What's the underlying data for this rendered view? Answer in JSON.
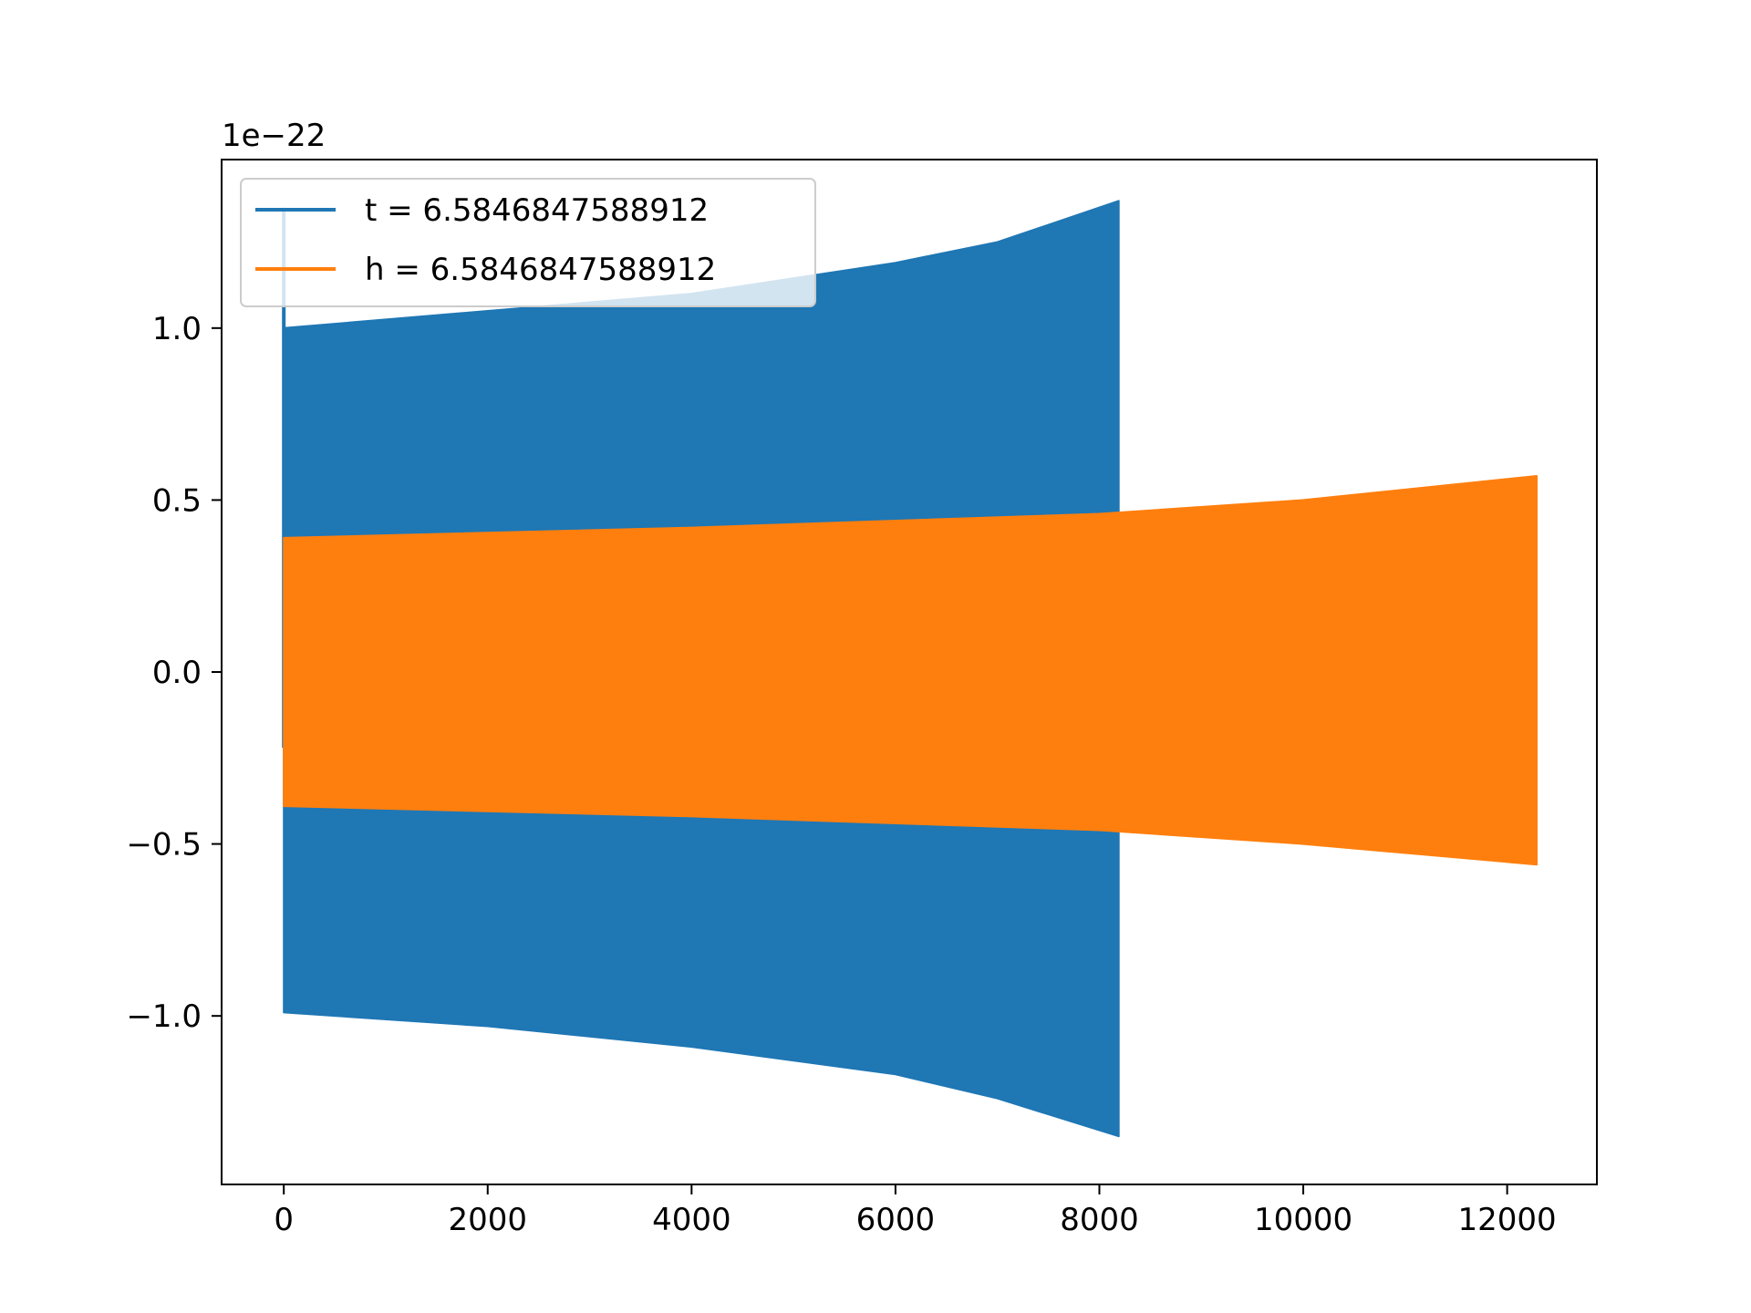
{
  "chart_data": {
    "type": "line",
    "title": "",
    "xlabel": "",
    "ylabel": "",
    "y_offset_label": "1e−22",
    "xlim": [
      -610,
      12880
    ],
    "ylim": [
      -1.49,
      1.49
    ],
    "x_ticks": [
      0,
      2000,
      4000,
      6000,
      8000,
      10000,
      12000
    ],
    "x_tick_labels": [
      "0",
      "2000",
      "4000",
      "6000",
      "8000",
      "10000",
      "12000"
    ],
    "y_ticks": [
      1.0,
      0.5,
      0.0,
      -0.5,
      -1.0
    ],
    "y_tick_labels": [
      "1.0",
      "0.5",
      "0.0",
      "−0.5",
      "−1.0"
    ],
    "grid": false,
    "legend_position": "upper-left",
    "series": [
      {
        "name": "t = 6.5846847588912",
        "color": "#1f77b4",
        "envelope": [
          {
            "x": 0,
            "upper": 1.0,
            "lower": -0.99
          },
          {
            "x": 2000,
            "upper": 1.05,
            "lower": -1.03
          },
          {
            "x": 4000,
            "upper": 1.1,
            "lower": -1.09
          },
          {
            "x": 6000,
            "upper": 1.19,
            "lower": -1.17
          },
          {
            "x": 7000,
            "upper": 1.25,
            "lower": -1.24
          },
          {
            "x": 8190,
            "upper": 1.37,
            "lower": -1.35
          }
        ],
        "start_spike": {
          "x": 0,
          "max": 1.35,
          "min": -0.22
        }
      },
      {
        "name": "h = 6.5846847588912",
        "color": "#ff7f0e",
        "envelope": [
          {
            "x": 0,
            "upper": 0.39,
            "lower": -0.39
          },
          {
            "x": 4000,
            "upper": 0.42,
            "lower": -0.42
          },
          {
            "x": 8000,
            "upper": 0.46,
            "lower": -0.46
          },
          {
            "x": 10000,
            "upper": 0.5,
            "lower": -0.5
          },
          {
            "x": 12290,
            "upper": 0.57,
            "lower": -0.56
          }
        ]
      }
    ]
  }
}
